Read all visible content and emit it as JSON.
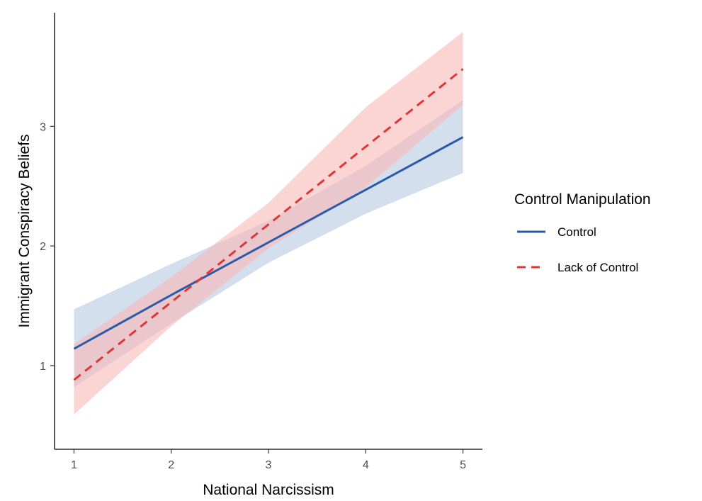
{
  "chart_data": {
    "type": "line",
    "xlabel": "National Narcissism",
    "ylabel": "Immigrant Conspiracy Beliefs",
    "xlim": [
      0.8,
      5.2
    ],
    "ylim": [
      0.3,
      3.95
    ],
    "x_ticks": [
      1,
      2,
      3,
      4,
      5
    ],
    "y_ticks": [
      1,
      2,
      3
    ],
    "grid": false,
    "legend": {
      "title": "Control Manipulation",
      "position": "right"
    },
    "series": [
      {
        "name": "Control",
        "color": "#2b5ba8",
        "band_color": "#b8c9e3",
        "line_style": "solid",
        "x": [
          1,
          2,
          3,
          4,
          5
        ],
        "y": [
          1.14,
          1.59,
          2.03,
          2.47,
          2.91
        ],
        "lower": [
          0.82,
          1.35,
          1.86,
          2.27,
          2.61
        ],
        "upper": [
          1.47,
          1.85,
          2.21,
          2.67,
          3.22
        ]
      },
      {
        "name": "Lack of Control",
        "color": "#e03636",
        "band_color": "#f8b8b8",
        "line_style": "dashed",
        "x": [
          1,
          2,
          3,
          4,
          5
        ],
        "y": [
          0.88,
          1.53,
          2.18,
          2.83,
          3.48
        ],
        "lower": [
          0.59,
          1.33,
          1.98,
          2.49,
          3.18
        ],
        "upper": [
          1.18,
          1.74,
          2.36,
          3.16,
          3.79
        ]
      }
    ]
  }
}
